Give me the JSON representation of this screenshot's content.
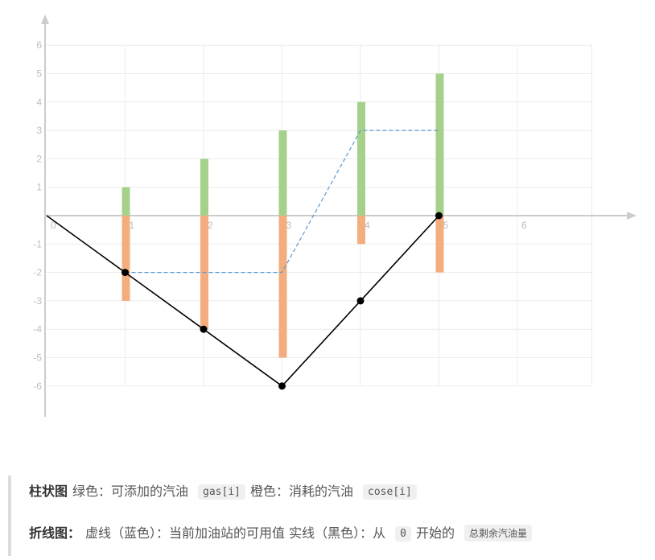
{
  "chart_data": {
    "type": "bar",
    "x_ticks": [
      "0",
      "1",
      "2",
      "3",
      "4",
      "5",
      "6"
    ],
    "y_ticks": [
      "6",
      "5",
      "4",
      "3",
      "2",
      "1",
      "-1",
      "-2",
      "-3",
      "-4",
      "-5",
      "-6"
    ],
    "xlim": [
      0,
      7
    ],
    "ylim": [
      -7,
      7
    ],
    "grid": true,
    "series": [
      {
        "type": "bar",
        "color": "#a6d18b",
        "x": [
          1,
          2,
          3,
          4,
          5
        ],
        "values": [
          1,
          2,
          3,
          4,
          5
        ]
      },
      {
        "type": "bar",
        "color": "#f4ad7e",
        "x": [
          1,
          2,
          3,
          4,
          5
        ],
        "values": [
          -3,
          -4,
          -5,
          -1,
          -2
        ]
      },
      {
        "type": "line",
        "style": "dashed",
        "color": "#5b9bd5",
        "points": [
          [
            1,
            -2
          ],
          [
            2,
            -2
          ],
          [
            3,
            -2
          ],
          [
            4,
            3
          ],
          [
            5,
            3
          ]
        ]
      },
      {
        "type": "line",
        "style": "solid",
        "color": "#000000",
        "points": [
          [
            0,
            0
          ],
          [
            1,
            -2
          ],
          [
            2,
            -4
          ],
          [
            3,
            -6
          ],
          [
            4,
            -3
          ],
          [
            5,
            0
          ]
        ],
        "markers": [
          [
            1,
            -2
          ],
          [
            2,
            -4
          ],
          [
            3,
            -6
          ],
          [
            4,
            -3
          ],
          [
            5,
            0
          ]
        ]
      }
    ]
  },
  "legend": {
    "bar_title": "柱状图",
    "bar_green_text": "绿色：可添加的汽油",
    "bar_green_code": "gas[i]",
    "bar_orange_text": "橙色：消耗的汽油",
    "bar_orange_code": "cose[i]",
    "line_title": "折线图：",
    "line_dashed_text": "虚线（蓝色）：当前加油站的可用值 实线（黑色）：从",
    "line_start_code": "0",
    "line_solid_text": "开始的",
    "line_total_code": "总剩余汽油量"
  }
}
